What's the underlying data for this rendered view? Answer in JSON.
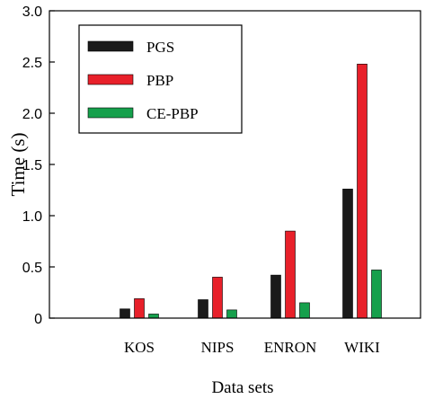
{
  "chart_data": {
    "type": "bar",
    "title": "",
    "xlabel": "Data sets",
    "ylabel": "Time (s)",
    "categories": [
      "KOS",
      "NIPS",
      "ENRON",
      "WIKI"
    ],
    "series": [
      {
        "name": "PGS",
        "color": "#1a1a1a",
        "values": [
          0.09,
          0.18,
          0.42,
          1.26
        ]
      },
      {
        "name": "PBP",
        "color": "#e8202a",
        "values": [
          0.19,
          0.4,
          0.85,
          2.48
        ]
      },
      {
        "name": "CE-PBP",
        "color": "#16a04c",
        "values": [
          0.04,
          0.08,
          0.15,
          0.47
        ]
      }
    ],
    "ylim": [
      0,
      3.0
    ],
    "yticks": [
      "0",
      "0.5",
      "1.0",
      "1.5",
      "2.0",
      "2.5",
      "3.0"
    ],
    "grid": false,
    "legend_position": "top-left"
  }
}
